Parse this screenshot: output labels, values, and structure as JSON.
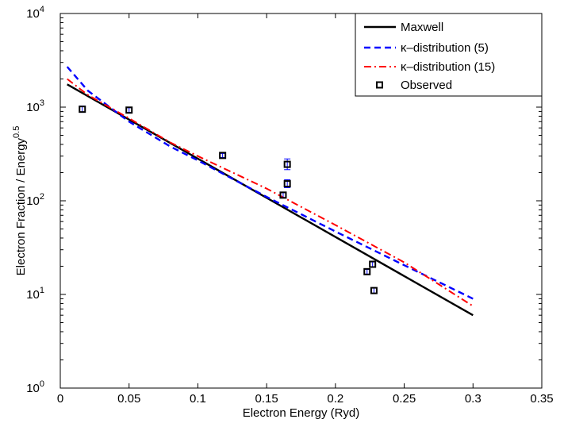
{
  "chart_data": {
    "type": "line",
    "title": "",
    "xlabel": "Electron Energy (Ryd)",
    "ylabel_main": "Electron Fraction / Energy",
    "ylabel_sup": "0.5",
    "xlim": [
      0,
      0.35
    ],
    "ylim_log10": [
      0,
      4
    ],
    "yscale": "log",
    "grid": false,
    "legend_position": "top-right",
    "x_ticks": [
      {
        "value": 0,
        "label": "0"
      },
      {
        "value": 0.05,
        "label": "0.05"
      },
      {
        "value": 0.1,
        "label": "0.1"
      },
      {
        "value": 0.15,
        "label": "0.15"
      },
      {
        "value": 0.2,
        "label": "0.2"
      },
      {
        "value": 0.25,
        "label": "0.25"
      },
      {
        "value": 0.3,
        "label": "0.3"
      },
      {
        "value": 0.35,
        "label": "0.35"
      }
    ],
    "y_ticks": [
      {
        "exp": 0,
        "base": "10",
        "sup": "0"
      },
      {
        "exp": 1,
        "base": "10",
        "sup": "1"
      },
      {
        "exp": 2,
        "base": "10",
        "sup": "2"
      },
      {
        "exp": 3,
        "base": "10",
        "sup": "3"
      },
      {
        "exp": 4,
        "base": "10",
        "sup": "4"
      }
    ],
    "series": [
      {
        "name": "Maxwell",
        "color": "#000000",
        "dash": "",
        "width": 2.4,
        "x": [
          0.005,
          0.3
        ],
        "y": [
          1750,
          6
        ]
      },
      {
        "name": "κ–distribution (5)",
        "color": "#0000ff",
        "dash": "8,5",
        "width": 2.4,
        "x": [
          0.005,
          0.02,
          0.05,
          0.08,
          0.1,
          0.15,
          0.2,
          0.25,
          0.3
        ],
        "y": [
          2700,
          1500,
          700,
          380,
          270,
          110,
          47,
          20.5,
          9
        ]
      },
      {
        "name": "κ–distribution (15)",
        "color": "#ff0000",
        "dash": "9,4,2,4",
        "width": 2.0,
        "x": [
          0.005,
          0.02,
          0.05,
          0.08,
          0.1,
          0.15,
          0.2,
          0.25,
          0.3
        ],
        "y": [
          2000,
          1350,
          760,
          420,
          300,
          135,
          55,
          22,
          7.5
        ]
      }
    ],
    "observed": {
      "name": "Observed",
      "marker_color": "#000000",
      "errorbar_color": "#0000ff",
      "points": [
        {
          "x": 0.016,
          "y": 950,
          "err_lo": 880,
          "err_hi": 1030
        },
        {
          "x": 0.05,
          "y": 930,
          "err_lo": 880,
          "err_hi": 985
        },
        {
          "x": 0.118,
          "y": 305,
          "err_lo": 290,
          "err_hi": 320
        },
        {
          "x": 0.162,
          "y": 115,
          "err_lo": 108,
          "err_hi": 122
        },
        {
          "x": 0.165,
          "y": 245,
          "err_lo": 215,
          "err_hi": 280
        },
        {
          "x": 0.165,
          "y": 152,
          "err_lo": 138,
          "err_hi": 168
        },
        {
          "x": 0.223,
          "y": 17.5,
          "err_lo": 16.5,
          "err_hi": 18.5
        },
        {
          "x": 0.227,
          "y": 21,
          "err_lo": 19.8,
          "err_hi": 22.2
        },
        {
          "x": 0.228,
          "y": 11,
          "err_lo": 10.3,
          "err_hi": 11.7
        }
      ]
    }
  }
}
